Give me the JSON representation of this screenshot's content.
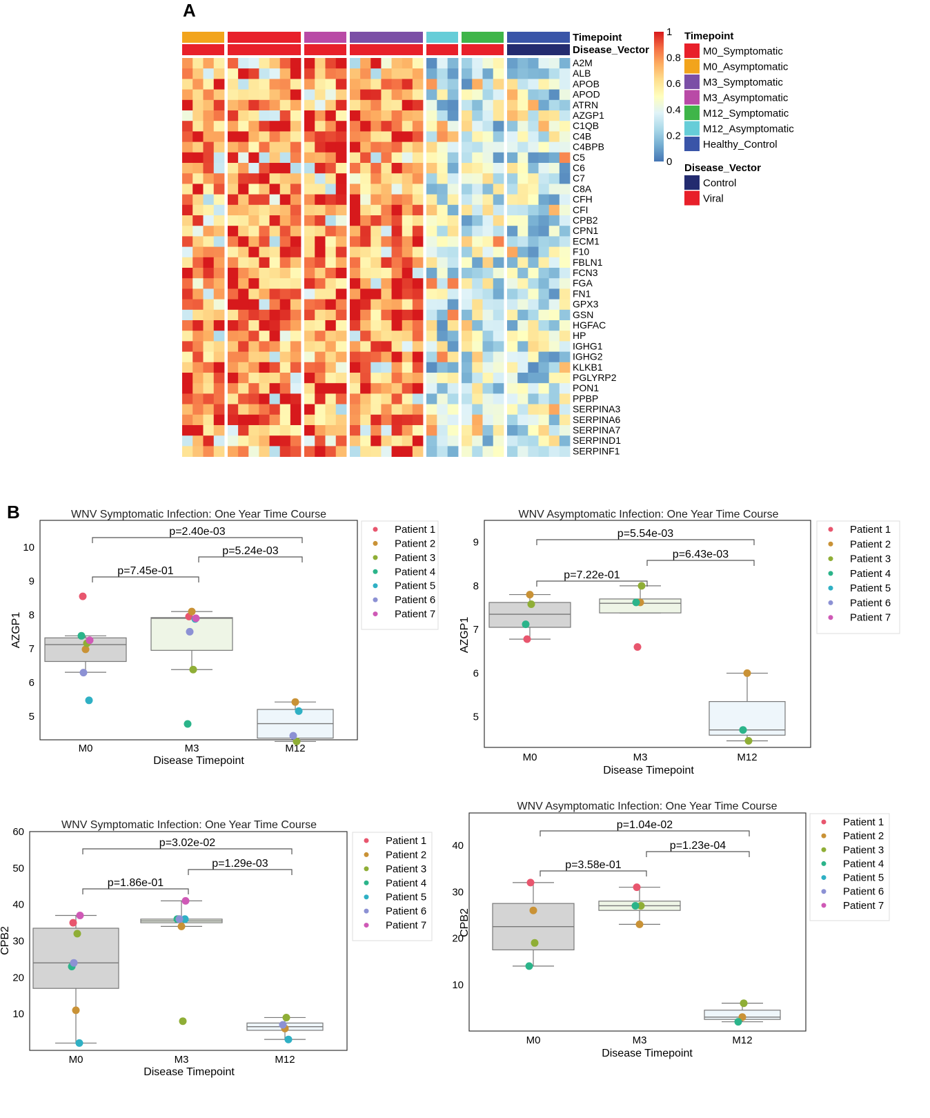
{
  "panel_labels": {
    "a": "A",
    "b": "B"
  },
  "heatmap": {
    "annotation_labels": {
      "timepoint": "Timepoint",
      "disease_vector": "Disease_Vector"
    },
    "genes": [
      "A2M",
      "ALB",
      "APOB",
      "APOD",
      "ATRN",
      "AZGP1",
      "C1QB",
      "C4B",
      "C4BPB",
      "C5",
      "C6",
      "C7",
      "C8A",
      "CFH",
      "CFI",
      "CPB2",
      "CPN1",
      "ECM1",
      "F10",
      "FBLN1",
      "FCN3",
      "FGA",
      "FN1",
      "GPX3",
      "GSN",
      "HGFAC",
      "HP",
      "IGHG1",
      "IGHG2",
      "KLKB1",
      "PGLYRP2",
      "PON1",
      "PPBP",
      "SERPINA3",
      "SERPINA6",
      "SERPINA7",
      "SERPIND1",
      "SERPINF1"
    ],
    "groups": [
      {
        "timepoint": "M0_Asymptomatic",
        "vector": "Viral",
        "n": 4
      },
      {
        "timepoint": "M0_Symptomatic",
        "vector": "Viral",
        "n": 7
      },
      {
        "timepoint": "M3_Asymptomatic",
        "vector": "Viral",
        "n": 4
      },
      {
        "timepoint": "M3_Symptomatic",
        "vector": "Viral",
        "n": 7
      },
      {
        "timepoint": "M12_Asymptomatic",
        "vector": "Viral",
        "n": 3
      },
      {
        "timepoint": "M12_Symptomatic",
        "vector": "Viral",
        "n": 4
      },
      {
        "timepoint": "Healthy_Control",
        "vector": "Control",
        "n": 6
      }
    ],
    "colorbar": {
      "ticks": [
        "1",
        "0.8",
        "0.6",
        "0.4",
        "0.2",
        "0"
      ],
      "min": 0,
      "max": 1,
      "stops": [
        "#d7191c",
        "#f46d43",
        "#fdae61",
        "#fee090",
        "#ffffbf",
        "#e0f3f8",
        "#abd9e9",
        "#74add1",
        "#4575b4"
      ]
    },
    "legend": {
      "timepoint_title": "Timepoint",
      "timepoint": [
        {
          "label": "M0_Symptomatic",
          "color": "#e8202a"
        },
        {
          "label": "M0_Asymptomatic",
          "color": "#f2a41c"
        },
        {
          "label": "M3_Symptomatic",
          "color": "#7b4fa6"
        },
        {
          "label": "M3_Asymptomatic",
          "color": "#b94aa6"
        },
        {
          "label": "M12_Symptomatic",
          "color": "#3fb549"
        },
        {
          "label": "M12_Asymptomatic",
          "color": "#66cdd8"
        },
        {
          "label": "Healthy_Control",
          "color": "#3a55a8"
        }
      ],
      "vector_title": "Disease_Vector",
      "vector": [
        {
          "label": "Control",
          "color": "#232b6f"
        },
        {
          "label": "Viral",
          "color": "#e8202a"
        }
      ]
    }
  },
  "chart_data": [
    {
      "type": "box",
      "title": "WNV Symptomatic Infection: One Year Time Course",
      "xlabel": "Disease Timepoint",
      "ylabel": "AZGP1",
      "categories": [
        "M0",
        "M3",
        "M12"
      ],
      "ylim": [
        4.3,
        10.8
      ],
      "yticks": [
        5,
        6,
        7,
        8,
        9,
        10
      ],
      "boxes": [
        {
          "q1": 6.62,
          "median": 7.12,
          "q3": 7.32,
          "whisker_low": 6.3,
          "whisker_high": 7.38,
          "fill": "#d4d4d4"
        },
        {
          "q1": 6.95,
          "median": 7.9,
          "q3": 7.92,
          "whisker_low": 6.38,
          "whisker_high": 8.1,
          "fill": "#eef5e6"
        },
        {
          "q1": 4.35,
          "median": 4.78,
          "q3": 5.2,
          "whisker_low": 4.25,
          "whisker_high": 5.42,
          "fill": "#eef6fb"
        }
      ],
      "points": [
        {
          "patient": "Patient 1",
          "cat": "M0",
          "y": 8.55
        },
        {
          "patient": "Patient 2",
          "cat": "M0",
          "y": 6.98
        },
        {
          "patient": "Patient 3",
          "cat": "M0",
          "y": 7.16
        },
        {
          "patient": "Patient 4",
          "cat": "M0",
          "y": 7.38
        },
        {
          "patient": "Patient 5",
          "cat": "M0",
          "y": 5.47
        },
        {
          "patient": "Patient 6",
          "cat": "M0",
          "y": 6.29
        },
        {
          "patient": "Patient 7",
          "cat": "M0",
          "y": 7.25
        },
        {
          "patient": "Patient 1",
          "cat": "M3",
          "y": 7.95
        },
        {
          "patient": "Patient 2",
          "cat": "M3",
          "y": 8.1
        },
        {
          "patient": "Patient 3",
          "cat": "M3",
          "y": 6.38
        },
        {
          "patient": "Patient 4",
          "cat": "M3",
          "y": 4.77
        },
        {
          "patient": "Patient 5",
          "cat": "M3",
          "y": 7.88
        },
        {
          "patient": "Patient 6",
          "cat": "M3",
          "y": 7.5
        },
        {
          "patient": "Patient 7",
          "cat": "M3",
          "y": 7.9
        },
        {
          "patient": "Patient 2",
          "cat": "M12",
          "y": 5.42
        },
        {
          "patient": "Patient 3",
          "cat": "M12",
          "y": 4.25
        },
        {
          "patient": "Patient 5",
          "cat": "M12",
          "y": 5.15
        },
        {
          "patient": "Patient 6",
          "cat": "M12",
          "y": 4.42
        }
      ],
      "brackets": [
        {
          "from": "M0",
          "to": "M12",
          "label": "p=2.40e-03",
          "level": 2
        },
        {
          "from": "M3",
          "to": "M12",
          "label": "p=5.24e-03",
          "level": 1
        },
        {
          "from": "M0",
          "to": "M3",
          "label": "p=7.45e-01",
          "level": 0
        }
      ]
    },
    {
      "type": "box",
      "title": "WNV Asymptomatic Infection: One Year Time Course",
      "xlabel": "Disease Timepoint",
      "ylabel": "AZGP1",
      "categories": [
        "M0",
        "M3",
        "M12"
      ],
      "ylim": [
        4.3,
        9.5
      ],
      "yticks": [
        5,
        6,
        7,
        8,
        9
      ],
      "boxes": [
        {
          "q1": 7.05,
          "median": 7.35,
          "q3": 7.62,
          "whisker_low": 6.78,
          "whisker_high": 7.8,
          "fill": "#d4d4d4"
        },
        {
          "q1": 7.38,
          "median": 7.6,
          "q3": 7.7,
          "whisker_low": 7.38,
          "whisker_high": 8.0,
          "fill": "#eef5e6"
        },
        {
          "q1": 4.58,
          "median": 4.7,
          "q3": 5.35,
          "whisker_low": 4.45,
          "whisker_high": 6.0,
          "fill": "#eef6fb"
        }
      ],
      "points": [
        {
          "patient": "Patient 1",
          "cat": "M0",
          "y": 6.78
        },
        {
          "patient": "Patient 2",
          "cat": "M0",
          "y": 7.8
        },
        {
          "patient": "Patient 3",
          "cat": "M0",
          "y": 7.58
        },
        {
          "patient": "Patient 4",
          "cat": "M0",
          "y": 7.12
        },
        {
          "patient": "Patient 1",
          "cat": "M3",
          "y": 6.6
        },
        {
          "patient": "Patient 2",
          "cat": "M3",
          "y": 7.62
        },
        {
          "patient": "Patient 3",
          "cat": "M3",
          "y": 8.0
        },
        {
          "patient": "Patient 4",
          "cat": "M3",
          "y": 7.62
        },
        {
          "patient": "Patient 2",
          "cat": "M12",
          "y": 6.0
        },
        {
          "patient": "Patient 3",
          "cat": "M12",
          "y": 4.45
        },
        {
          "patient": "Patient 4",
          "cat": "M12",
          "y": 4.7
        }
      ],
      "brackets": [
        {
          "from": "M0",
          "to": "M12",
          "label": "p=5.54e-03",
          "level": 2
        },
        {
          "from": "M3",
          "to": "M12",
          "label": "p=6.43e-03",
          "level": 1
        },
        {
          "from": "M0",
          "to": "M3",
          "label": "p=7.22e-01",
          "level": 0
        }
      ]
    },
    {
      "type": "box",
      "title": "WNV Symptomatic Infection: One Year Time Course",
      "xlabel": "Disease Timepoint",
      "ylabel": "CPB2",
      "categories": [
        "M0",
        "M3",
        "M12"
      ],
      "ylim": [
        0,
        60
      ],
      "yticks": [
        10,
        20,
        30,
        40,
        50,
        60
      ],
      "boxes": [
        {
          "q1": 17.0,
          "median": 24.0,
          "q3": 33.5,
          "whisker_low": 2.0,
          "whisker_high": 37.0,
          "fill": "#d4d4d4"
        },
        {
          "q1": 35.0,
          "median": 35.5,
          "q3": 36.0,
          "whisker_low": 34.0,
          "whisker_high": 41.0,
          "fill": "#eef5e6"
        },
        {
          "q1": 5.5,
          "median": 6.5,
          "q3": 7.5,
          "whisker_low": 3.0,
          "whisker_high": 9.0,
          "fill": "#eef6fb"
        }
      ],
      "points": [
        {
          "patient": "Patient 1",
          "cat": "M0",
          "y": 35.0
        },
        {
          "patient": "Patient 2",
          "cat": "M0",
          "y": 11.0
        },
        {
          "patient": "Patient 3",
          "cat": "M0",
          "y": 32.0
        },
        {
          "patient": "Patient 4",
          "cat": "M0",
          "y": 23.0
        },
        {
          "patient": "Patient 5",
          "cat": "M0",
          "y": 2.0
        },
        {
          "patient": "Patient 6",
          "cat": "M0",
          "y": 24.0
        },
        {
          "patient": "Patient 7",
          "cat": "M0",
          "y": 37.0
        },
        {
          "patient": "Patient 1",
          "cat": "M3",
          "y": 36.0
        },
        {
          "patient": "Patient 2",
          "cat": "M3",
          "y": 34.0
        },
        {
          "patient": "Patient 3",
          "cat": "M3",
          "y": 8.0
        },
        {
          "patient": "Patient 4",
          "cat": "M3",
          "y": 36.0
        },
        {
          "patient": "Patient 5",
          "cat": "M3",
          "y": 36.0
        },
        {
          "patient": "Patient 6",
          "cat": "M3",
          "y": 36.0
        },
        {
          "patient": "Patient 7",
          "cat": "M3",
          "y": 41.0
        },
        {
          "patient": "Patient 2",
          "cat": "M12",
          "y": 6.0
        },
        {
          "patient": "Patient 3",
          "cat": "M12",
          "y": 9.0
        },
        {
          "patient": "Patient 5",
          "cat": "M12",
          "y": 3.0
        },
        {
          "patient": "Patient 6",
          "cat": "M12",
          "y": 7.0
        }
      ],
      "brackets": [
        {
          "from": "M0",
          "to": "M12",
          "label": "p=3.02e-02",
          "level": 2
        },
        {
          "from": "M3",
          "to": "M12",
          "label": "p=1.29e-03",
          "level": 1
        },
        {
          "from": "M0",
          "to": "M3",
          "label": "p=1.86e-01",
          "level": 0
        }
      ]
    },
    {
      "type": "box",
      "title": "WNV Asymptomatic Infection: One Year Time Course",
      "xlabel": "Disease Timepoint",
      "ylabel": "CPB2",
      "categories": [
        "M0",
        "M3",
        "M12"
      ],
      "ylim": [
        0,
        47
      ],
      "yticks": [
        10,
        20,
        30,
        40
      ],
      "boxes": [
        {
          "q1": 17.5,
          "median": 22.5,
          "q3": 27.5,
          "whisker_low": 14.0,
          "whisker_high": 32.0,
          "fill": "#d4d4d4"
        },
        {
          "q1": 26.0,
          "median": 27.0,
          "q3": 28.0,
          "whisker_low": 23.0,
          "whisker_high": 31.0,
          "fill": "#eef5e6"
        },
        {
          "q1": 2.5,
          "median": 3.0,
          "q3": 4.5,
          "whisker_low": 2.0,
          "whisker_high": 6.0,
          "fill": "#eef6fb"
        }
      ],
      "points": [
        {
          "patient": "Patient 1",
          "cat": "M0",
          "y": 32.0
        },
        {
          "patient": "Patient 2",
          "cat": "M0",
          "y": 26.0
        },
        {
          "patient": "Patient 3",
          "cat": "M0",
          "y": 19.0
        },
        {
          "patient": "Patient 4",
          "cat": "M0",
          "y": 14.0
        },
        {
          "patient": "Patient 1",
          "cat": "M3",
          "y": 31.0
        },
        {
          "patient": "Patient 2",
          "cat": "M3",
          "y": 23.0
        },
        {
          "patient": "Patient 3",
          "cat": "M3",
          "y": 27.0
        },
        {
          "patient": "Patient 4",
          "cat": "M3",
          "y": 27.0
        },
        {
          "patient": "Patient 2",
          "cat": "M12",
          "y": 3.0
        },
        {
          "patient": "Patient 3",
          "cat": "M12",
          "y": 6.0
        },
        {
          "patient": "Patient 4",
          "cat": "M12",
          "y": 2.0
        }
      ],
      "brackets": [
        {
          "from": "M0",
          "to": "M12",
          "label": "p=1.04e-02",
          "level": 2
        },
        {
          "from": "M3",
          "to": "M12",
          "label": "p=1.23e-04",
          "level": 1
        },
        {
          "from": "M0",
          "to": "M3",
          "label": "p=3.58e-01",
          "level": 0
        }
      ]
    }
  ],
  "patient_legend": [
    {
      "label": "Patient 1",
      "color": "#e8566e"
    },
    {
      "label": "Patient 2",
      "color": "#c99236"
    },
    {
      "label": "Patient 3",
      "color": "#8fae36"
    },
    {
      "label": "Patient 4",
      "color": "#2bb48a"
    },
    {
      "label": "Patient 5",
      "color": "#2fb0c4"
    },
    {
      "label": "Patient 6",
      "color": "#8c91d4"
    },
    {
      "label": "Patient 7",
      "color": "#cf59b6"
    }
  ]
}
